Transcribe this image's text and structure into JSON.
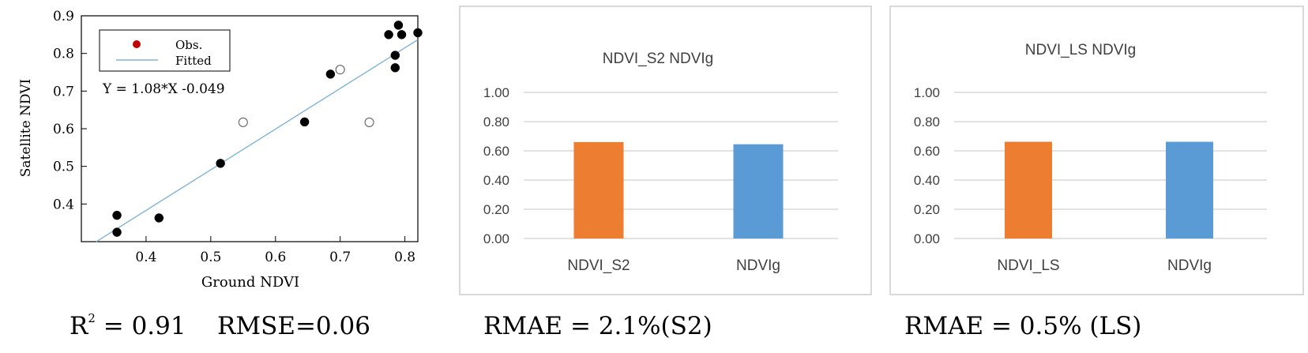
{
  "chart_data": [
    {
      "type": "scatter",
      "title": "",
      "xlabel": "Ground NDVI",
      "ylabel": "Satellite NDVI",
      "xlim": [
        0.3,
        0.82
      ],
      "ylim": [
        0.3,
        0.9
      ],
      "xticks": [
        "0.4",
        "0.5",
        "0.6",
        "0.7",
        "0.8"
      ],
      "yticks": [
        "0.4",
        "0.5",
        "0.6",
        "0.7",
        "0.8",
        "0.9"
      ],
      "legend": {
        "position": "top-left",
        "obs_label": "Obs.",
        "fitted_label": "Fitted"
      },
      "equation": "Y = 1.08*X -0.049",
      "fit": {
        "slope": 1.08,
        "intercept": -0.049
      },
      "series": [
        {
          "name": "filled",
          "x": [
            0.355,
            0.355,
            0.42,
            0.515,
            0.645,
            0.685,
            0.775,
            0.79,
            0.795,
            0.785,
            0.785,
            0.82
          ],
          "y": [
            0.37,
            0.325,
            0.363,
            0.508,
            0.618,
            0.745,
            0.85,
            0.875,
            0.85,
            0.795,
            0.762,
            0.855
          ]
        },
        {
          "name": "hollow",
          "x": [
            0.55,
            0.7,
            0.745
          ],
          "y": [
            0.617,
            0.757,
            0.617
          ]
        }
      ],
      "colors": {
        "line": "#7fb3d5",
        "obs_legend": "#c00000",
        "point": "#000000"
      }
    },
    {
      "type": "bar",
      "title": "NDVI_S2 NDVIg",
      "categories": [
        "NDVI_S2",
        "NDVIg"
      ],
      "values": [
        0.66,
        0.645
      ],
      "colors": [
        "#ed7d31",
        "#5b9bd5"
      ],
      "ylim": [
        0,
        1
      ],
      "yticks": [
        "0.00",
        "0.20",
        "0.40",
        "0.60",
        "0.80",
        "1.00"
      ]
    },
    {
      "type": "bar",
      "title": "NDVI_LS NDVIg",
      "categories": [
        "NDVI_LS",
        "NDVIg"
      ],
      "values": [
        0.662,
        0.662
      ],
      "colors": [
        "#ed7d31",
        "#5b9bd5"
      ],
      "ylim": [
        0,
        1
      ],
      "yticks": [
        "0.00",
        "0.20",
        "0.40",
        "0.60",
        "0.80",
        "1.00"
      ]
    }
  ],
  "captions": {
    "r_letter": "R",
    "r_exp": "2",
    "scatter_stats": " = 0.91    RMSE=0.06",
    "s2": "RMAE = 2.1%(S2)",
    "ls": "RMAE = 0.5% (LS)"
  }
}
